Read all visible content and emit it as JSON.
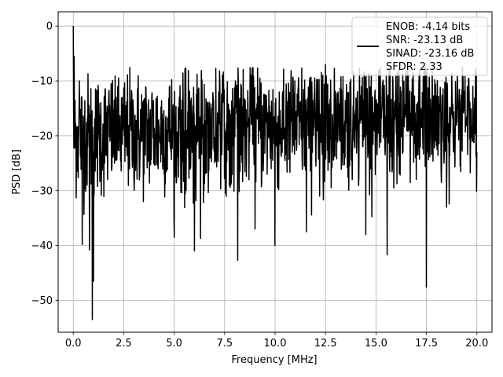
{
  "chart_data": {
    "type": "line",
    "xlabel": "Frequency [MHz]",
    "ylabel": "PSD [dB]",
    "xlim": [
      -0.75,
      20.75
    ],
    "ylim": [
      -55.8,
      2.6
    ],
    "x_ticks": [
      0.0,
      2.5,
      5.0,
      7.5,
      10.0,
      12.5,
      15.0,
      17.5,
      20.0
    ],
    "x_tick_labels": [
      "0.0",
      "2.5",
      "5.0",
      "7.5",
      "10.0",
      "12.5",
      "15.0",
      "17.5",
      "20.0"
    ],
    "y_ticks": [
      0,
      -10,
      -20,
      -30,
      -40,
      -50
    ],
    "y_tick_labels": [
      "0",
      "−10",
      "−20",
      "−30",
      "−40",
      "−50"
    ],
    "grid": true,
    "legend_placement": "top-right",
    "legend_lines": [
      "ENOB: -4.14 bits",
      "SNR: -23.13 dB",
      "SINAD: -23.16 dB",
      "SFDR: 2.33"
    ],
    "line_color": "#000000",
    "series": [
      {
        "x_range": [
          0.0,
          20.0
        ],
        "num_points": 1400,
        "noise_floor_db_start": -20.0,
        "noise_floor_db_end": -16.5,
        "noise_std_db": 5.5,
        "peaks": [
          {
            "x": 0.0,
            "y": 0.0
          },
          {
            "x": 0.05,
            "y": -5.5
          },
          {
            "x": 0.09,
            "y": -13.5
          },
          {
            "x": 0.3,
            "y": -10.0
          },
          {
            "x": 12.5,
            "y": -7.0
          },
          {
            "x": 19.6,
            "y": -9.5
          }
        ],
        "dips": [
          {
            "x": 0.94,
            "y": -53.5
          },
          {
            "x": 1.0,
            "y": -46.5
          },
          {
            "x": 0.8,
            "y": -40.8
          },
          {
            "x": 0.45,
            "y": -39.8
          },
          {
            "x": 5.0,
            "y": -38.5
          },
          {
            "x": 6.0,
            "y": -41.0
          },
          {
            "x": 6.3,
            "y": -38.7
          },
          {
            "x": 8.15,
            "y": -42.7
          },
          {
            "x": 9.0,
            "y": -37.0
          },
          {
            "x": 10.0,
            "y": -40.0
          },
          {
            "x": 11.55,
            "y": -37.5
          },
          {
            "x": 14.5,
            "y": -38.0
          },
          {
            "x": 15.55,
            "y": -41.7
          },
          {
            "x": 17.5,
            "y": -47.6
          },
          {
            "x": 18.5,
            "y": -33.0
          }
        ]
      }
    ]
  }
}
